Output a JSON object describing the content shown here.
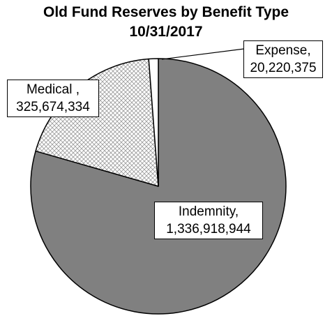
{
  "chart_data": {
    "type": "pie",
    "title": "Old Fund Reserves by Benefit Type",
    "subtitle": "10/31/2017",
    "slices": [
      {
        "name": "Indemnity",
        "label": "Indemnity,",
        "value": 1336918944,
        "value_text": "1,336,918,944",
        "color": "#808080",
        "pattern": "solid"
      },
      {
        "name": "Medical",
        "label": "Medical ,",
        "value": 325674334,
        "value_text": "325,674,334",
        "color": "#ffffff",
        "pattern": "crosshatch"
      },
      {
        "name": "Expense",
        "label": "Expense,",
        "value": 20220375,
        "value_text": "20,220,375",
        "color": "#ffffff",
        "pattern": "solid"
      }
    ],
    "start_angle_deg": 0,
    "direction": "clockwise",
    "legend": "none",
    "data_labels": "boxed callouts"
  }
}
